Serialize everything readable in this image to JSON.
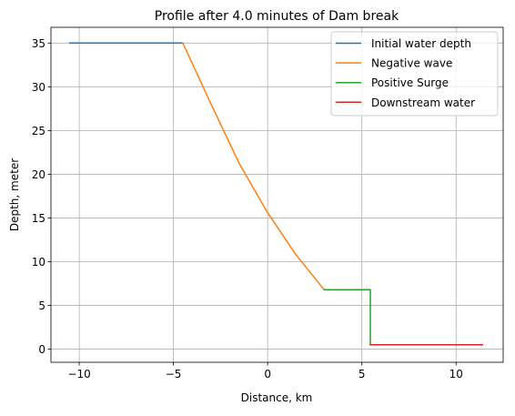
{
  "chart_data": {
    "type": "line",
    "title": "Profile after 4.0 minutes of Dam break",
    "xlabel": "Distance, km",
    "ylabel": "Depth, meter",
    "xlim": [
      -11.5,
      12.5
    ],
    "ylim": [
      -1.5,
      36.8
    ],
    "xticks": [
      -10,
      -5,
      0,
      5,
      10
    ],
    "xtick_labels": [
      "−10",
      "−5",
      "0",
      "5",
      "10"
    ],
    "yticks": [
      0,
      5,
      10,
      15,
      20,
      25,
      30,
      35
    ],
    "ytick_labels": [
      "0",
      "5",
      "10",
      "15",
      "20",
      "25",
      "30",
      "35"
    ],
    "grid": true,
    "legend_position": "top-right",
    "series": [
      {
        "name": "Initial water depth",
        "color": "#1f77b4",
        "x": [
          -10.5,
          -4.5
        ],
        "y": [
          35,
          35
        ]
      },
      {
        "name": "Negative wave",
        "color": "#ff7f0e",
        "x": [
          -4.5,
          -3.0,
          -1.5,
          0.0,
          1.5,
          3.0
        ],
        "y": [
          35,
          28.0,
          21.2,
          15.6,
          10.8,
          6.8
        ]
      },
      {
        "name": "Positive Surge",
        "color": "#2ca02c",
        "x": [
          3.0,
          5.45,
          5.45
        ],
        "y": [
          6.8,
          6.8,
          0.5
        ]
      },
      {
        "name": "Downstream water",
        "color": "#d62728",
        "x": [
          5.45,
          11.4
        ],
        "y": [
          0.5,
          0.5
        ]
      }
    ]
  }
}
